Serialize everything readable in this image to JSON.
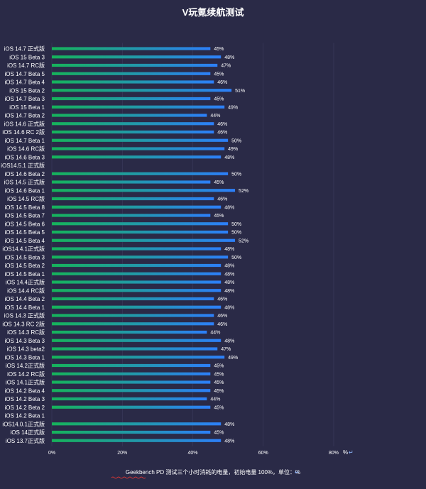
{
  "chart_data": {
    "type": "bar",
    "orientation": "horizontal",
    "title": "V玩氪续航测试",
    "caption": "Geekbench PD 测试三个小时消耗的电量，初始电量 100%，单位：%",
    "x_unit_label": "%",
    "xlim": [
      0,
      80
    ],
    "xticks": [
      0,
      20,
      40,
      60,
      80
    ],
    "xtick_labels": [
      "0%",
      "20%",
      "40%",
      "60%",
      "80%"
    ],
    "value_suffix": "%",
    "categories": [
      "iOS 14.7 正式版",
      "iOS 15 Beta 3",
      "iOS 14.7 RC版",
      "iOS 14.7 Beta 5",
      "iOS 14.7 Beta 4",
      "iOS 15 Beta 2",
      "iOS 14.7 Beta 3",
      "iOS 15 Beta 1",
      "iOS 14.7 Beta 2",
      "iOS 14.6 正式版",
      "iOS 14.6 RC 2版",
      "iOS 14.7 Beta 1",
      "iOS 14.6 RC版",
      "iOS 14.6 Beta 3",
      "iOS14.5.1 正式版",
      "iOS 14.6 Beta 2",
      "iOS 14.5 正式版",
      "iOS 14.6 Beta 1",
      "iOS 14.5 RC版",
      "iOS 14.5 Beta 8",
      "iOS 14.5 Beta 7",
      "iOS 14.5 Beta 6",
      "iOS 14.5 Beta 5",
      "iOS 14.5 Beta 4",
      "iOS14.4.1正式版",
      "iOS 14.5 Beta 3",
      "iOS 14.5 Beta 2",
      "iOS 14.5 Beta 1",
      "iOS 14.4正式版",
      "iOS 14.4 RC版",
      "iOS 14.4 Beta 2",
      "iOS 14.4 Beta 1",
      "iOS 14.3 正式版",
      "iOS 14.3 RC 2版",
      "iOS 14.3 RC版",
      "iOS 14.3 Beta 3",
      "iOS 14.3 beta2",
      "iOS 14.3 Beta 1",
      "iOS 14.2正式版",
      "iOS 14.2 RC版",
      "iOS 14.1正式版",
      "iOS 14.2 Beta 4",
      "iOS 14.2 Beta 3",
      "iOS 14.2 Beta 2",
      "iOS 14.2 Beta 1",
      "iOS14.0.1正式版",
      "iOS 14正式版",
      "iOS 13.7正式版"
    ],
    "values": [
      45,
      48,
      47,
      45,
      46,
      51,
      45,
      49,
      44,
      46,
      46,
      50,
      49,
      48,
      null,
      50,
      45,
      52,
      46,
      48,
      45,
      50,
      50,
      52,
      48,
      50,
      48,
      48,
      48,
      48,
      46,
      48,
      46,
      46,
      44,
      48,
      47,
      49,
      45,
      45,
      45,
      45,
      44,
      45,
      null,
      48,
      45,
      48
    ],
    "colors": {
      "bar_start": "#16b35a",
      "bar_end": "#2d7ff9",
      "background": "#2a2a47",
      "text": "#ffffff"
    }
  }
}
